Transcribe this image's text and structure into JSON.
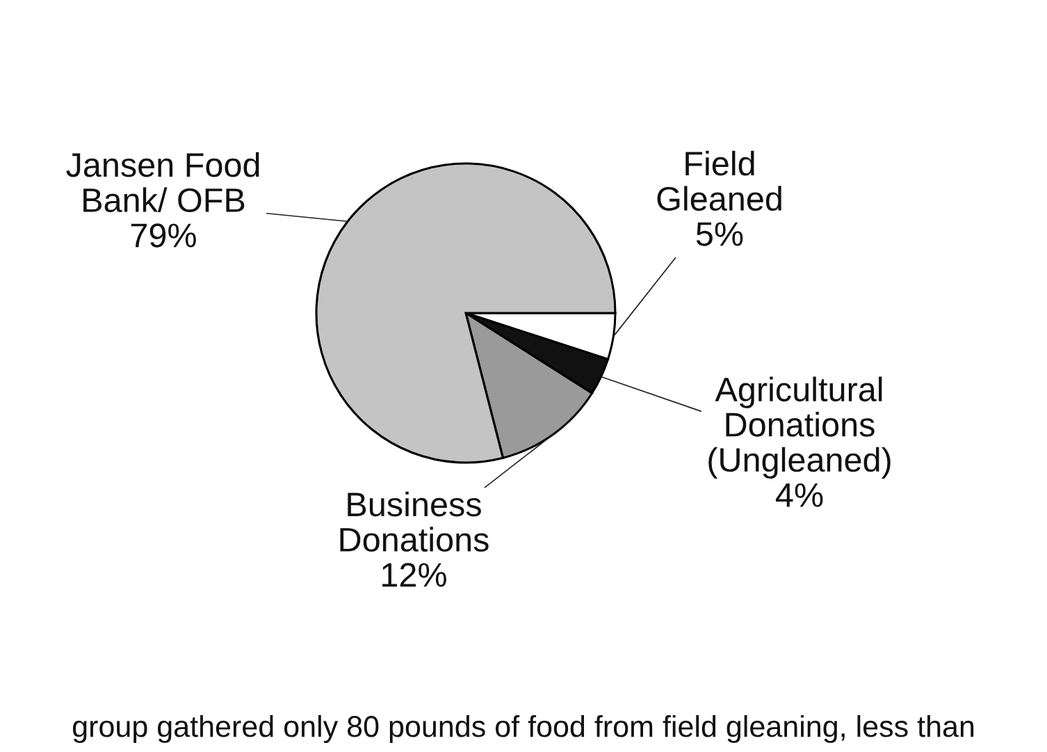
{
  "chart_data": {
    "type": "pie",
    "categories": [
      "Field\nGleaned",
      "Agricultural\nDonations\n(Ungleaned)",
      "Business\nDonations",
      "Jansen Food\nBank/ OFB"
    ],
    "values": [
      5,
      4,
      12,
      79
    ],
    "value_labels": [
      "5%",
      "4%",
      "12%",
      "79%"
    ],
    "colors": [
      "#ffffff",
      "#111111",
      "#9a9a9a",
      "#c4c4c4"
    ],
    "annotations": [
      "group gathered only 80 pounds of food from field gleaning, less than"
    ]
  }
}
